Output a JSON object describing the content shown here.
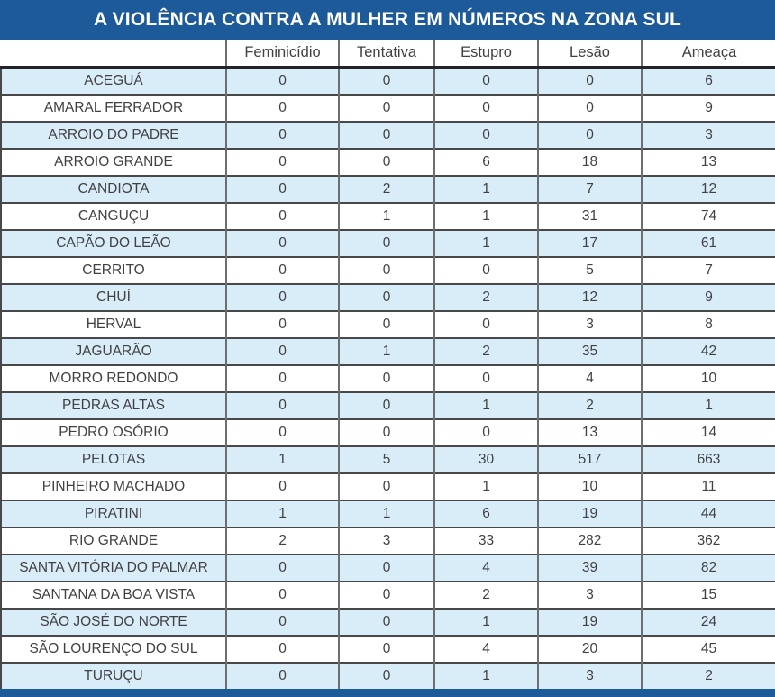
{
  "title": "A VIOLÊNCIA CONTRA A MULHER EM NÚMEROS NA ZONA SUL",
  "colors": {
    "bar_blue": "#1d5a99",
    "stripe_blue": "#d9edf8",
    "text": "#414042",
    "grid_vertical": "#6d6e71",
    "grid_horizontal": "#48484a"
  },
  "chart_data": {
    "type": "table",
    "title": "A VIOLÊNCIA CONTRA A MULHER EM NÚMEROS NA ZONA SUL",
    "columns": [
      "Feminicídio",
      "Tentativa",
      "Estupro",
      "Lesão",
      "Ameaça"
    ],
    "rows": [
      {
        "name": "ACEGUÁ",
        "values": [
          0,
          0,
          0,
          0,
          6
        ]
      },
      {
        "name": "AMARAL FERRADOR",
        "values": [
          0,
          0,
          0,
          0,
          9
        ]
      },
      {
        "name": "ARROIO DO PADRE",
        "values": [
          0,
          0,
          0,
          0,
          3
        ]
      },
      {
        "name": "ARROIO GRANDE",
        "values": [
          0,
          0,
          6,
          18,
          13
        ]
      },
      {
        "name": "CANDIOTA",
        "values": [
          0,
          2,
          1,
          7,
          12
        ]
      },
      {
        "name": "CANGUÇU",
        "values": [
          0,
          1,
          1,
          31,
          74
        ]
      },
      {
        "name": "CAPÃO DO LEÃO",
        "values": [
          0,
          0,
          1,
          17,
          61
        ]
      },
      {
        "name": "CERRITO",
        "values": [
          0,
          0,
          0,
          5,
          7
        ]
      },
      {
        "name": "CHUÍ",
        "values": [
          0,
          0,
          2,
          12,
          9
        ]
      },
      {
        "name": "HERVAL",
        "values": [
          0,
          0,
          0,
          3,
          8
        ]
      },
      {
        "name": "JAGUARÃO",
        "values": [
          0,
          1,
          2,
          35,
          42
        ]
      },
      {
        "name": "MORRO REDONDO",
        "values": [
          0,
          0,
          0,
          4,
          10
        ]
      },
      {
        "name": "PEDRAS ALTAS",
        "values": [
          0,
          0,
          1,
          2,
          1
        ]
      },
      {
        "name": "PEDRO OSÓRIO",
        "values": [
          0,
          0,
          0,
          13,
          14
        ]
      },
      {
        "name": "PELOTAS",
        "values": [
          1,
          5,
          30,
          517,
          663
        ]
      },
      {
        "name": "PINHEIRO MACHADO",
        "values": [
          0,
          0,
          1,
          10,
          11
        ]
      },
      {
        "name": "PIRATINI",
        "values": [
          1,
          1,
          6,
          19,
          44
        ]
      },
      {
        "name": "RIO GRANDE",
        "values": [
          2,
          3,
          33,
          282,
          362
        ]
      },
      {
        "name": "SANTA VITÓRIA DO PALMAR",
        "values": [
          0,
          0,
          4,
          39,
          82
        ]
      },
      {
        "name": "SANTANA DA BOA VISTA",
        "values": [
          0,
          0,
          2,
          3,
          15
        ]
      },
      {
        "name": "SÃO JOSÉ DO NORTE",
        "values": [
          0,
          0,
          1,
          19,
          24
        ]
      },
      {
        "name": "SÃO LOURENÇO DO SUL",
        "values": [
          0,
          0,
          4,
          20,
          45
        ]
      },
      {
        "name": "TURUÇU",
        "values": [
          0,
          0,
          1,
          3,
          2
        ]
      }
    ]
  }
}
